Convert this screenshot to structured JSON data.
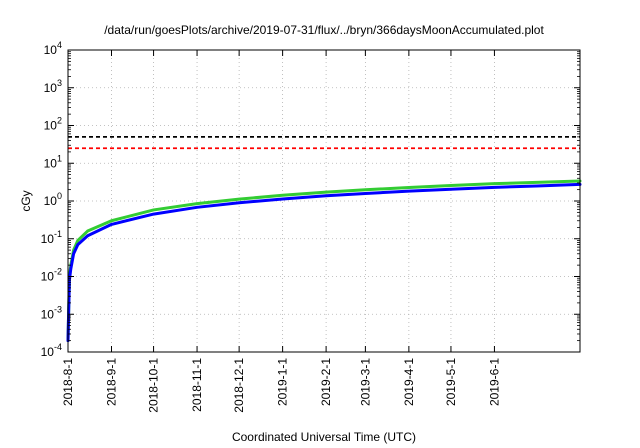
{
  "chart_data": {
    "type": "line",
    "title": "/data/run/goesPlots/archive/2019-07-31/flux/../bryn/366daysMoonAccumulated.plot",
    "xlabel": "Coordinated Universal Time (UTC)",
    "ylabel": "cGy",
    "yscale": "log",
    "ylim": [
      0.0001,
      10000
    ],
    "y_ticks": [
      {
        "base": "10",
        "exp": "-4"
      },
      {
        "base": "10",
        "exp": "-3"
      },
      {
        "base": "10",
        "exp": "-2"
      },
      {
        "base": "10",
        "exp": "-1"
      },
      {
        "base": "10",
        "exp": "0"
      },
      {
        "base": "10",
        "exp": "1"
      },
      {
        "base": "10",
        "exp": "2"
      },
      {
        "base": "10",
        "exp": "3"
      },
      {
        "base": "10",
        "exp": "4"
      }
    ],
    "xlim": [
      "2018-08-01",
      "2019-08-01"
    ],
    "x_ticks": [
      "2018-8-1",
      "2018-9-1",
      "2018-10-1",
      "2018-11-1",
      "2018-12-1",
      "2019-1-1",
      "2019-2-1",
      "2019-3-1",
      "2019-4-1",
      "2019-5-1",
      "2019-6-1"
    ],
    "grid": true,
    "reference_lines": [
      {
        "y": 50,
        "color": "#000000",
        "style": "dashed"
      },
      {
        "y": 25,
        "color": "#ff0000",
        "style": "dashed"
      }
    ],
    "series": [
      {
        "color": "#33cc33",
        "x": [
          "2018-08-01",
          "2018-08-02",
          "2018-08-03",
          "2018-08-05",
          "2018-08-08",
          "2018-08-15",
          "2018-09-01",
          "2018-10-01",
          "2018-11-01",
          "2018-12-01",
          "2019-01-01",
          "2019-02-01",
          "2019-03-01",
          "2019-04-01",
          "2019-05-01",
          "2019-06-01",
          "2019-07-01",
          "2019-08-01"
        ],
        "values": [
          0.0002,
          0.01,
          0.02,
          0.05,
          0.09,
          0.16,
          0.3,
          0.58,
          0.85,
          1.12,
          1.42,
          1.72,
          1.98,
          2.28,
          2.58,
          2.88,
          3.12,
          3.4
        ]
      },
      {
        "color": "#0000ff",
        "x": [
          "2018-08-01",
          "2018-08-02",
          "2018-08-03",
          "2018-08-05",
          "2018-08-08",
          "2018-08-15",
          "2018-09-01",
          "2018-10-01",
          "2018-11-01",
          "2018-12-01",
          "2019-01-01",
          "2019-02-01",
          "2019-03-01",
          "2019-04-01",
          "2019-05-01",
          "2019-06-01",
          "2019-07-01",
          "2019-08-01"
        ],
        "values": [
          0.0002,
          0.008,
          0.016,
          0.04,
          0.07,
          0.12,
          0.24,
          0.45,
          0.68,
          0.9,
          1.13,
          1.38,
          1.58,
          1.82,
          2.05,
          2.3,
          2.5,
          2.75
        ]
      }
    ]
  }
}
